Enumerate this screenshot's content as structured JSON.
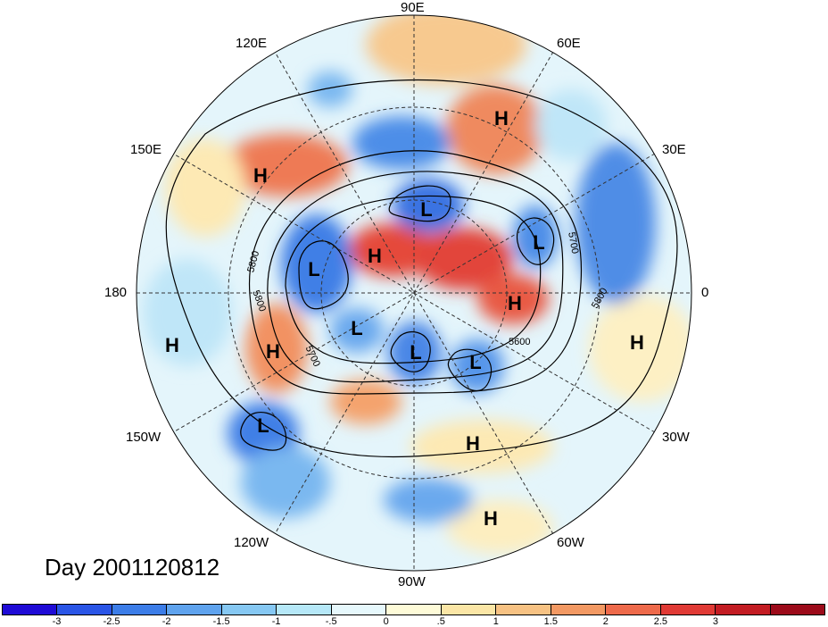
{
  "map": {
    "projection": "north-polar-stereographic",
    "lon_labels": {
      "lon_90e": "90E",
      "lon_60e": "60E",
      "lon_30e": "30E",
      "lon_0": "0",
      "lon_30w": "30W",
      "lon_60w": "60W",
      "lon_90w": "90W",
      "lon_120w": "120W",
      "lon_150w": "150W",
      "lon_180": "180",
      "lon_150e": "150E",
      "lon_120e": "120E"
    },
    "systems": [
      {
        "id": "h1",
        "label": "H"
      },
      {
        "id": "h2",
        "label": "H"
      },
      {
        "id": "h3",
        "label": "H"
      },
      {
        "id": "h4",
        "label": "H"
      },
      {
        "id": "h5",
        "label": "H"
      },
      {
        "id": "h6",
        "label": "H"
      },
      {
        "id": "h7",
        "label": "H"
      },
      {
        "id": "h8",
        "label": "H"
      },
      {
        "id": "h9",
        "label": "H"
      },
      {
        "id": "l1",
        "label": "L"
      },
      {
        "id": "l2",
        "label": "L"
      },
      {
        "id": "l3",
        "label": "L"
      },
      {
        "id": "l4",
        "label": "L"
      },
      {
        "id": "l5",
        "label": "L"
      },
      {
        "id": "l6",
        "label": "L"
      },
      {
        "id": "l7",
        "label": "L"
      }
    ],
    "contour_labels": {
      "c5800_a": "5800",
      "c5800_b": "5800",
      "c5700_a": "5700",
      "c5700_b": "5700",
      "c5600": "5600",
      "c5800_c": "5800"
    }
  },
  "day_label": "Day 2001120812",
  "colorbar": {
    "colors": [
      "#1f0bd6",
      "#2a55e6",
      "#3c7de8",
      "#5fa3ee",
      "#86c8f3",
      "#b6e8f8",
      "#e6f8fc",
      "#fefbd8",
      "#fbe6a6",
      "#f7c283",
      "#f39963",
      "#ee6a4b",
      "#e03a35",
      "#c31c23",
      "#9c0b1a"
    ],
    "ticks": [
      "-3",
      "-2.5",
      "-2",
      "-1.5",
      "-1",
      "-.5",
      "0",
      ".5",
      "1",
      "1.5",
      "2",
      "2.5",
      "3"
    ]
  }
}
